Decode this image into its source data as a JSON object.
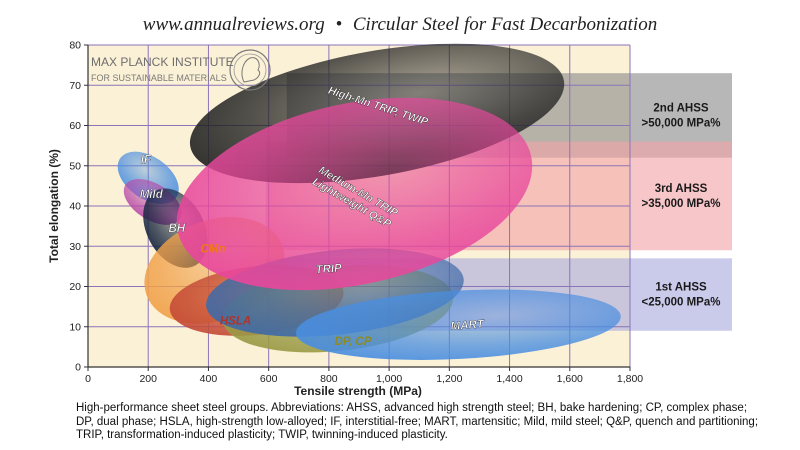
{
  "header": {
    "site": "www.annualreviews.org",
    "separator": "•",
    "title": "Circular Steel for Fast Decarbonization"
  },
  "logo": {
    "line1": "MAX PLANCK INSTITUTE",
    "line2": "FOR SUSTAINABLE MATERIALS"
  },
  "chart_data": {
    "type": "scatter",
    "xlabel": "Tensile strength (MPa)",
    "ylabel": "Total elongation (%)",
    "xlim": [
      0,
      1800
    ],
    "ylim": [
      0,
      80
    ],
    "xticks": [
      0,
      200,
      400,
      600,
      800,
      1000,
      1200,
      1400,
      1600,
      1800
    ],
    "xtick_labels": [
      "0",
      "200",
      "400",
      "600",
      "800",
      "1,000",
      "1,200",
      "1,400",
      "1,600",
      "1,800"
    ],
    "yticks": [
      0,
      10,
      20,
      30,
      40,
      50,
      60,
      70,
      80
    ],
    "ytick_labels": [
      "0",
      "10",
      "20",
      "30",
      "40",
      "50",
      "60",
      "70",
      "80"
    ],
    "grid": true,
    "bands": [
      {
        "id": "band-2nd-ahss",
        "line1": "2nd AHSS",
        "line2": ">50,000 MPa%",
        "x": [
          660,
          1800
        ],
        "y": [
          52,
          73
        ],
        "color": "#8a8a8a"
      },
      {
        "id": "band-3rd-ahss",
        "line1": "3rd AHSS",
        "line2": ">35,000 MPa%",
        "x": [
          590,
          1800
        ],
        "y": [
          29,
          56
        ],
        "color": "#f2a3a8"
      },
      {
        "id": "band-1st-ahss",
        "line1": "1st AHSS",
        "line2": "<25,000 MPa%",
        "x": [
          590,
          1800
        ],
        "y": [
          9,
          27
        ],
        "color": "#a9a9de"
      }
    ],
    "regions": [
      {
        "name": "IF",
        "cx": 200,
        "cy": 47,
        "rx": 70,
        "ry": 8.5,
        "angle": -55,
        "color": "#4a8ee0",
        "label_color": "#ffffff",
        "lx": 192,
        "ly": 50.5,
        "label_rot": 0
      },
      {
        "name": "Mild",
        "cx": 215,
        "cy": 41,
        "rx": 60,
        "ry": 8,
        "angle": -58,
        "color": "#b84aa8",
        "label_color": "#ffffff",
        "lx": 210,
        "ly": 42,
        "label_rot": 0
      },
      {
        "name": "BH",
        "cx": 290,
        "cy": 34.5,
        "rx": 95,
        "ry": 10.5,
        "angle": -28,
        "color": "#16253e",
        "label_color": "#ffffff",
        "lx": 295,
        "ly": 33.5,
        "label_rot": 0
      },
      {
        "name": "CMn",
        "cx": 420,
        "cy": 24,
        "rx": 240,
        "ry": 12.5,
        "angle": -20,
        "color": "#f1a14a",
        "label_color": "#f07818",
        "lx": 415,
        "ly": 28.5,
        "label_rot": 0
      },
      {
        "name": "HSLA",
        "cx": 560,
        "cy": 16.5,
        "rx": 290,
        "ry": 8.5,
        "angle": -6,
        "color": "#c44a36",
        "label_color": "#b13228",
        "lx": 490,
        "ly": 10.5,
        "label_rot": 0
      },
      {
        "name": "DP, CP",
        "cx": 830,
        "cy": 14.5,
        "rx": 385,
        "ry": 10.5,
        "angle": -6,
        "color": "#9a9a45",
        "label_color": "#8e8a22",
        "lx": 880,
        "ly": 5.5,
        "label_rot": 0
      },
      {
        "name": "TRIP",
        "cx": 820,
        "cy": 18.5,
        "rx": 430,
        "ry": 10.5,
        "angle": -6,
        "color": "#3f6aa7",
        "label_color": "#ffffff",
        "lx": 800,
        "ly": 23.5,
        "label_rot": -4
      },
      {
        "name": "MART",
        "cx": 1230,
        "cy": 10.5,
        "rx": 540,
        "ry": 8.5,
        "angle": -3,
        "color": "#4a8ee0",
        "label_color": "#ffffff",
        "lx": 1260,
        "ly": 9.5,
        "label_rot": -4
      },
      {
        "name": "High-Mn TRIP, TWIP",
        "cx": 960,
        "cy": 63,
        "rx": 630,
        "ry": 15.5,
        "angle": -10,
        "color": "#222222",
        "label_color": "#ffffff",
        "lx": 960,
        "ly": 64,
        "label_rot": 18
      },
      {
        "name": "Medium-Mn TRIP Lightweight Q&P",
        "cx": 885,
        "cy": 43,
        "rx": 600,
        "ry": 22.5,
        "angle": -12,
        "color": "#e8479c",
        "label_color": "#ffffff",
        "lx": 885,
        "ly": 42,
        "label_rot": 30
      }
    ]
  },
  "caption": "High-performance sheet steel groups. Abbreviations: AHSS, advanced high strength steel; BH, bake hardening; CP, complex phase; DP, dual phase; HSLA, high-strength low-alloyed; IF, interstitial-free; MART, martensitic; Mild, mild steel; Q&P, quench and partitioning; TRIP, transformation-induced plasticity; TWIP, twinning-induced plasticity."
}
